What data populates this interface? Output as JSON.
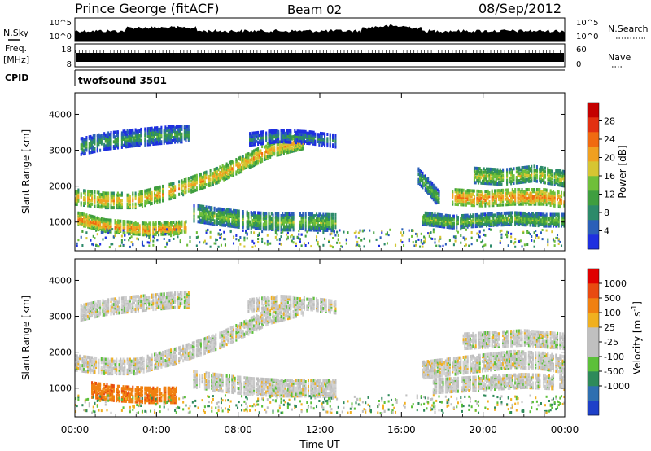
{
  "header": {
    "title": "Prince George (fitACF)",
    "beam": "Beam 02",
    "date": "08/Sep/2012"
  },
  "strips": {
    "nsky_label": "N.Sky",
    "nsky_ticks": [
      "10^5",
      "10^0"
    ],
    "nsearch_label": "N.Search",
    "nsearch_ticks": [
      "10^5",
      "10^0"
    ],
    "freq_label": "Freq.",
    "freq_unit": "[MHz]",
    "freq_ticks": [
      "18",
      "8"
    ],
    "nave_label": "Nave",
    "nave_ticks": [
      "60",
      "0"
    ],
    "cpid_label": "CPID",
    "cpid_value": "twofsound 3501"
  },
  "chart_data": [
    {
      "type": "heatmap",
      "name": "power",
      "ylabel": "Slant Range [km]",
      "ylim": [
        200,
        4600
      ],
      "yticks": [
        1000,
        2000,
        3000,
        4000
      ],
      "xlim": [
        0,
        24
      ],
      "xticks": [
        "00:00",
        "04:00",
        "08:00",
        "12:00",
        "16:00",
        "20:00",
        "00:00"
      ],
      "colorbar": {
        "label": "Power [dB]",
        "ticks": [
          "4",
          "8",
          "12",
          "16",
          "20",
          "24",
          "28"
        ],
        "colors": [
          "#1e2fe0",
          "#2b5fb8",
          "#2c8a6a",
          "#3f9e3f",
          "#6fbf3a",
          "#d6c532",
          "#f0a020",
          "#f06a10",
          "#e23010",
          "#c40000"
        ]
      },
      "bands": [
        {
          "t": [
            0.0,
            1.5,
            3.0,
            5.0,
            7.0,
            8.5,
            9.5,
            10.5,
            11.2
          ],
          "r": [
            1700,
            1600,
            1600,
            1900,
            2300,
            2700,
            3000,
            3150,
            3250
          ],
          "w": 200,
          "db": 20
        },
        {
          "t": [
            0.1,
            1.5,
            3.5,
            5.5
          ],
          "r": [
            1100,
            900,
            800,
            850
          ],
          "w": 160,
          "db": 22
        },
        {
          "t": [
            0.3,
            1.5,
            3.0,
            5.0,
            5.6
          ],
          "r": [
            3100,
            3250,
            3350,
            3450,
            3450
          ],
          "w": 220,
          "db": 10
        },
        {
          "t": [
            5.8,
            7.0,
            8.5,
            10.0,
            11.5,
            12.8
          ],
          "r": [
            1250,
            1150,
            1050,
            1000,
            1000,
            980
          ],
          "w": 220,
          "db": 14
        },
        {
          "t": [
            8.5,
            10.0,
            11.5,
            12.8
          ],
          "r": [
            3300,
            3400,
            3350,
            3250
          ],
          "w": 160,
          "db": 8
        },
        {
          "t": [
            18.5,
            20.0,
            21.5,
            23.0,
            24.0
          ],
          "r": [
            1700,
            1650,
            1700,
            1700,
            1600
          ],
          "w": 200,
          "db": 22
        },
        {
          "t": [
            17.0,
            18.5,
            20.0,
            21.5,
            23.0,
            24.0
          ],
          "r": [
            1100,
            1000,
            1050,
            1100,
            1050,
            1050
          ],
          "w": 160,
          "db": 14
        },
        {
          "t": [
            19.5,
            21.0,
            22.5,
            24.0
          ],
          "r": [
            2300,
            2250,
            2350,
            2200
          ],
          "w": 200,
          "db": 16
        },
        {
          "t": [
            16.8,
            17.3,
            17.9
          ],
          "r": [
            2300,
            2000,
            1600
          ],
          "w": 200,
          "db": 12
        }
      ]
    },
    {
      "type": "heatmap",
      "name": "velocity",
      "ylabel": "Slant Range [km]",
      "ylim": [
        200,
        4600
      ],
      "yticks": [
        1000,
        2000,
        3000,
        4000
      ],
      "xlim": [
        0,
        24
      ],
      "xticks": [
        "00:00",
        "04:00",
        "08:00",
        "12:00",
        "16:00",
        "20:00",
        "00:00"
      ],
      "xlabel": "Time UT",
      "colorbar": {
        "label": "Velocity [m s^-1]",
        "ticks": [
          "1000",
          "500",
          "100",
          "25",
          "-25",
          "-100",
          "-500",
          "-1000"
        ],
        "colors": [
          "#1e40c8",
          "#2f6fb0",
          "#2e8a5a",
          "#5cc03a",
          "#c0c0c0",
          "#c0c0c0",
          "#f0b020",
          "#f08010",
          "#e84a10",
          "#e00000"
        ]
      },
      "bands": [
        {
          "t": [
            0.0,
            1.5,
            3.0,
            5.0,
            7.0,
            8.5,
            9.5,
            10.5,
            11.2
          ],
          "r": [
            1700,
            1600,
            1600,
            1900,
            2300,
            2700,
            3000,
            3150,
            3250
          ],
          "w": 200,
          "v": 0
        },
        {
          "t": [
            0.8,
            2.0,
            3.5,
            5.0
          ],
          "r": [
            950,
            850,
            800,
            800
          ],
          "w": 200,
          "v": -400
        },
        {
          "t": [
            0.3,
            1.5,
            3.0,
            5.0,
            5.6
          ],
          "r": [
            3100,
            3250,
            3350,
            3450,
            3450
          ],
          "w": 200,
          "v": 0
        },
        {
          "t": [
            5.8,
            7.0,
            8.5,
            10.0,
            11.5,
            12.8
          ],
          "r": [
            1250,
            1150,
            1050,
            1000,
            1000,
            980
          ],
          "w": 220,
          "v": 0
        },
        {
          "t": [
            8.5,
            10.0,
            11.5,
            12.8
          ],
          "r": [
            3300,
            3400,
            3350,
            3250
          ],
          "w": 160,
          "v": 0
        },
        {
          "t": [
            17.0,
            18.5,
            20.0,
            21.5,
            23.0,
            24.0
          ],
          "r": [
            1500,
            1600,
            1700,
            1800,
            1750,
            1650
          ],
          "w": 220,
          "v": 0
        },
        {
          "t": [
            17.5,
            19.0,
            20.5,
            22.0,
            24.0
          ],
          "r": [
            1050,
            1100,
            1150,
            1200,
            1150
          ],
          "w": 180,
          "v": 0
        },
        {
          "t": [
            19.0,
            20.5,
            22.0,
            24.0
          ],
          "r": [
            2300,
            2350,
            2400,
            2300
          ],
          "w": 200,
          "v": 0
        }
      ]
    }
  ]
}
